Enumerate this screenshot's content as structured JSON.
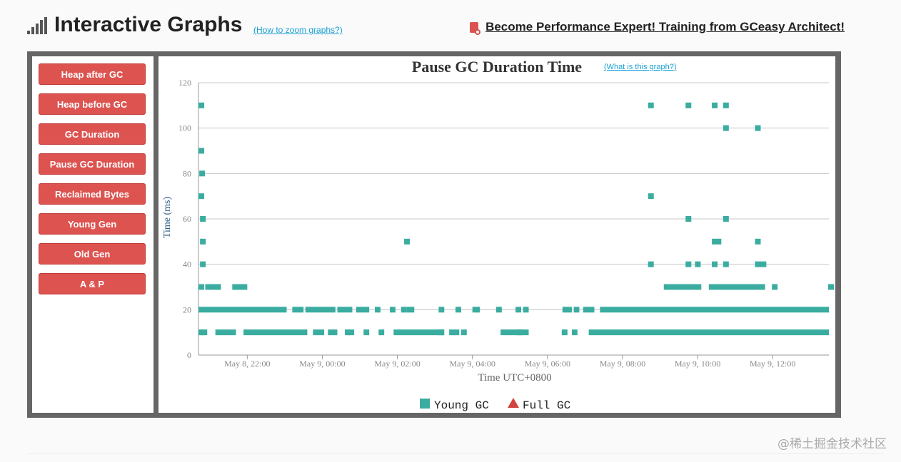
{
  "header": {
    "title": "Interactive Graphs",
    "zoom_link": "(How to zoom graphs?)",
    "promo": "Become Performance Expert! Training from GCeasy Architect!"
  },
  "sidebar": {
    "items": [
      {
        "label": "Heap after GC"
      },
      {
        "label": "Heap before GC"
      },
      {
        "label": "GC Duration"
      },
      {
        "label": "Pause GC Duration"
      },
      {
        "label": "Reclaimed Bytes"
      },
      {
        "label": "Young Gen"
      },
      {
        "label": "Old Gen"
      },
      {
        "label": "A & P"
      }
    ]
  },
  "watermark": "@稀土掘金技术社区",
  "chart_data": {
    "type": "scatter",
    "title": "Pause GC Duration Time",
    "help_link": "(What is this graph?)",
    "xlabel": "Time UTC+0800",
    "ylabel": "Time (ms)",
    "ylim": [
      0,
      120
    ],
    "yticks": [
      0,
      20,
      40,
      60,
      80,
      100,
      120
    ],
    "xlim_hours": [
      20.7,
      13.3
    ],
    "xtick_labels": [
      "May 8, 22:00",
      "May 9, 00:00",
      "May 9, 02:00",
      "May 9, 04:00",
      "May 9, 06:00",
      "May 9, 08:00",
      "May 9, 10:00",
      "May 9, 12:00"
    ],
    "legend": [
      {
        "name": "Young GC",
        "marker": "square",
        "color": "#3aada0"
      },
      {
        "name": "Full GC",
        "marker": "triangle",
        "color": "#d0453f"
      }
    ],
    "series": [
      {
        "name": "Young GC",
        "color": "#3aada0",
        "points": [
          [
            0.02,
            110
          ],
          [
            0.02,
            90
          ],
          [
            0.04,
            80
          ],
          [
            0.02,
            70
          ],
          [
            0.06,
            60
          ],
          [
            0.06,
            50
          ],
          [
            0.06,
            40
          ],
          [
            5.5,
            50
          ],
          [
            12.0,
            110
          ],
          [
            13.0,
            110
          ],
          [
            13.7,
            110
          ],
          [
            14.0,
            110
          ],
          [
            14.0,
            100
          ],
          [
            14.85,
            100
          ],
          [
            12.0,
            70
          ],
          [
            13.0,
            60
          ],
          [
            14.0,
            60
          ],
          [
            13.7,
            50
          ],
          [
            13.8,
            50
          ],
          [
            14.85,
            50
          ],
          [
            12.0,
            40
          ],
          [
            13.0,
            40
          ],
          [
            13.25,
            40
          ],
          [
            13.7,
            40
          ],
          [
            14.0,
            40
          ],
          [
            14.85,
            40
          ],
          [
            15.0,
            40
          ],
          [
            0.02,
            30
          ],
          [
            15.3,
            30
          ],
          [
            16.8,
            30
          ],
          [
            0.02,
            10
          ],
          [
            0.1,
            10
          ],
          [
            6.4,
            10
          ],
          [
            6.7,
            10
          ],
          [
            8.5,
            10
          ],
          [
            9.7,
            10
          ],
          [
            7.95,
            20
          ]
        ],
        "runs": [
          [
            0.0,
            2.35,
            20
          ],
          [
            2.5,
            2.8,
            20
          ],
          [
            2.85,
            3.65,
            20
          ],
          [
            3.7,
            4.1,
            20
          ],
          [
            4.2,
            4.55,
            20
          ],
          [
            4.7,
            4.85,
            20
          ],
          [
            5.1,
            5.25,
            20
          ],
          [
            5.4,
            5.55,
            20
          ],
          [
            5.55,
            5.75,
            20
          ],
          [
            6.4,
            6.55,
            20
          ],
          [
            6.85,
            7.0,
            20
          ],
          [
            7.3,
            7.5,
            20
          ],
          [
            8.45,
            8.6,
            20
          ],
          [
            8.65,
            8.8,
            20
          ],
          [
            9.7,
            9.95,
            20
          ],
          [
            10.0,
            10.15,
            20
          ],
          [
            10.25,
            10.55,
            20
          ],
          [
            10.7,
            16.8,
            20
          ],
          [
            0.18,
            0.6,
            30
          ],
          [
            0.9,
            1.3,
            30
          ],
          [
            12.4,
            13.4,
            30
          ],
          [
            13.6,
            15.1,
            30
          ],
          [
            0.45,
            1.0,
            10
          ],
          [
            1.2,
            2.9,
            10
          ],
          [
            3.05,
            3.35,
            10
          ],
          [
            3.45,
            3.7,
            10
          ],
          [
            3.9,
            4.0,
            10
          ],
          [
            4.0,
            4.15,
            10
          ],
          [
            4.4,
            4.55,
            10
          ],
          [
            4.8,
            4.95,
            10
          ],
          [
            5.2,
            6.55,
            10
          ],
          [
            6.8,
            6.95,
            10
          ],
          [
            7.0,
            7.15,
            10
          ],
          [
            8.05,
            8.8,
            10
          ],
          [
            9.95,
            10.1,
            10
          ],
          [
            10.4,
            16.8,
            10
          ]
        ]
      },
      {
        "name": "Full GC",
        "color": "#d0453f",
        "points": []
      }
    ]
  }
}
